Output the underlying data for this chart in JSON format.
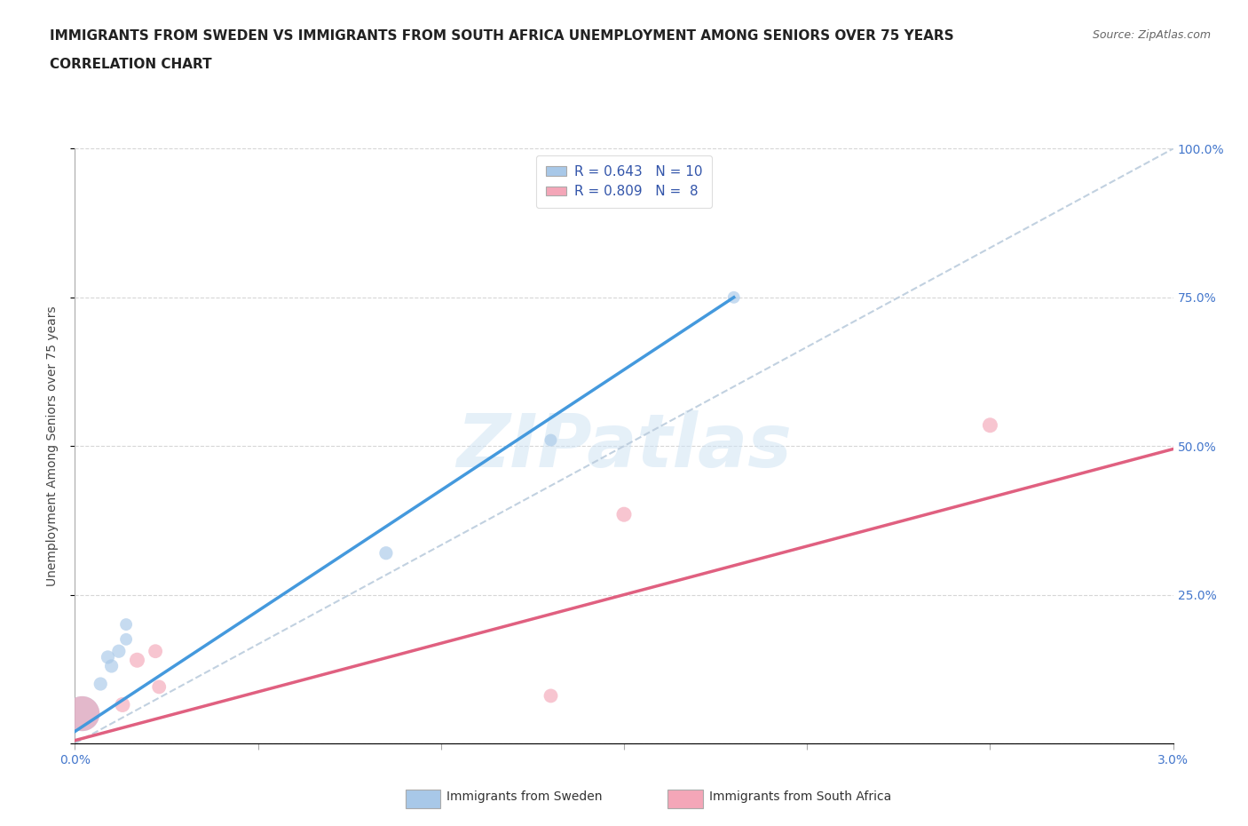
{
  "title_line1": "IMMIGRANTS FROM SWEDEN VS IMMIGRANTS FROM SOUTH AFRICA UNEMPLOYMENT AMONG SENIORS OVER 75 YEARS",
  "title_line2": "CORRELATION CHART",
  "source_text": "Source: ZipAtlas.com",
  "ylabel": "Unemployment Among Seniors over 75 years",
  "xlim": [
    0.0,
    0.03
  ],
  "ylim": [
    0.0,
    1.0
  ],
  "xticks": [
    0.0,
    0.005,
    0.01,
    0.015,
    0.02,
    0.025,
    0.03
  ],
  "xticklabels": [
    "0.0%",
    "",
    "",
    "",
    "",
    "",
    "3.0%"
  ],
  "ytick_positions": [
    0.0,
    0.25,
    0.5,
    0.75,
    1.0
  ],
  "yticklabels": [
    "",
    "25.0%",
    "50.0%",
    "75.0%",
    "100.0%"
  ],
  "sweden_color": "#a8c8e8",
  "south_africa_color": "#f4a6b8",
  "sweden_line_color": "#4499dd",
  "south_africa_line_color": "#e06080",
  "diagonal_color": "#bbccdd",
  "sweden_x": [
    0.0002,
    0.0007,
    0.0009,
    0.001,
    0.0012,
    0.0014,
    0.0014,
    0.0085,
    0.013,
    0.018
  ],
  "sweden_y": [
    0.05,
    0.1,
    0.145,
    0.13,
    0.155,
    0.175,
    0.2,
    0.32,
    0.51,
    0.75
  ],
  "sweden_sizes": [
    800,
    120,
    120,
    120,
    120,
    100,
    100,
    120,
    100,
    100
  ],
  "south_africa_x": [
    0.0002,
    0.0013,
    0.0017,
    0.0022,
    0.0023,
    0.013,
    0.015,
    0.025
  ],
  "south_africa_y": [
    0.05,
    0.065,
    0.14,
    0.155,
    0.095,
    0.08,
    0.385,
    0.535
  ],
  "south_africa_sizes": [
    800,
    150,
    150,
    130,
    130,
    130,
    150,
    150
  ],
  "sweden_line_x": [
    0.0,
    0.018
  ],
  "sweden_line_y": [
    0.02,
    0.75
  ],
  "south_africa_line_x": [
    0.0,
    0.03
  ],
  "south_africa_line_y": [
    0.005,
    0.495
  ],
  "legend_sweden_label": "R = 0.643   N = 10",
  "legend_south_africa_label": "R = 0.809   N =  8",
  "watermark_text": "ZIPatlas",
  "bottom_legend_sweden": "Immigrants from Sweden",
  "bottom_legend_south_africa": "Immigrants from South Africa",
  "background_color": "#ffffff",
  "grid_color": "#cccccc",
  "title_fontsize": 11,
  "axis_label_fontsize": 10,
  "tick_fontsize": 10,
  "tick_color": "#4477cc",
  "legend_fontsize": 11
}
